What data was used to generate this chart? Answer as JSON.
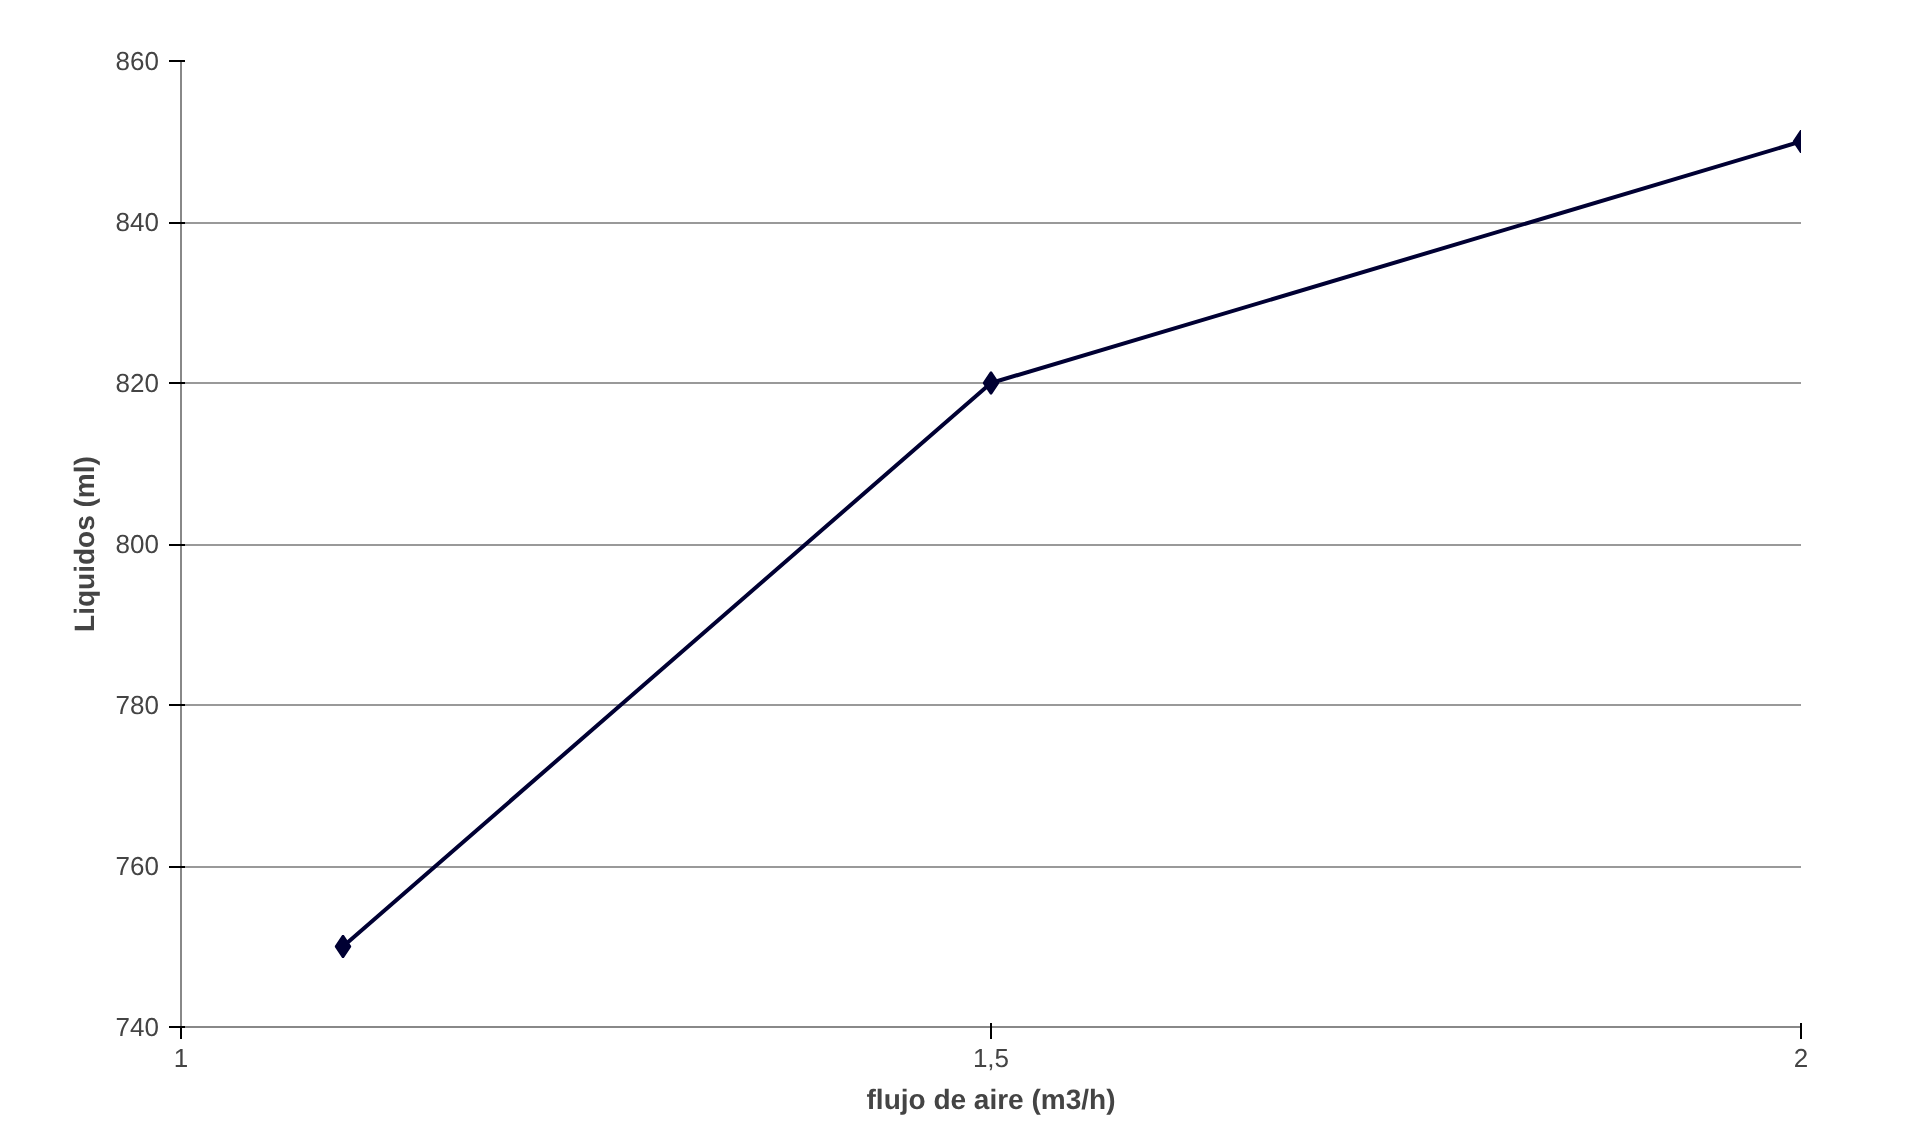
{
  "chart_data": {
    "type": "line",
    "xlabel": "flujo de aire (m3/h)",
    "ylabel": "Liquidos (ml)",
    "x": [
      1.1,
      1.5,
      2
    ],
    "series": [
      {
        "color": "#000033",
        "values": [
          750,
          820,
          850
        ]
      }
    ],
    "xlim": [
      1,
      2
    ],
    "xticks": [
      1,
      {
        "value": 1.5,
        "label": "1,5"
      },
      2
    ],
    "ylim": [
      740,
      860
    ],
    "yticks": [
      740,
      760,
      780,
      800,
      820,
      840,
      860
    ],
    "grid": "y",
    "marker": "diamond",
    "line_style": "solid"
  }
}
